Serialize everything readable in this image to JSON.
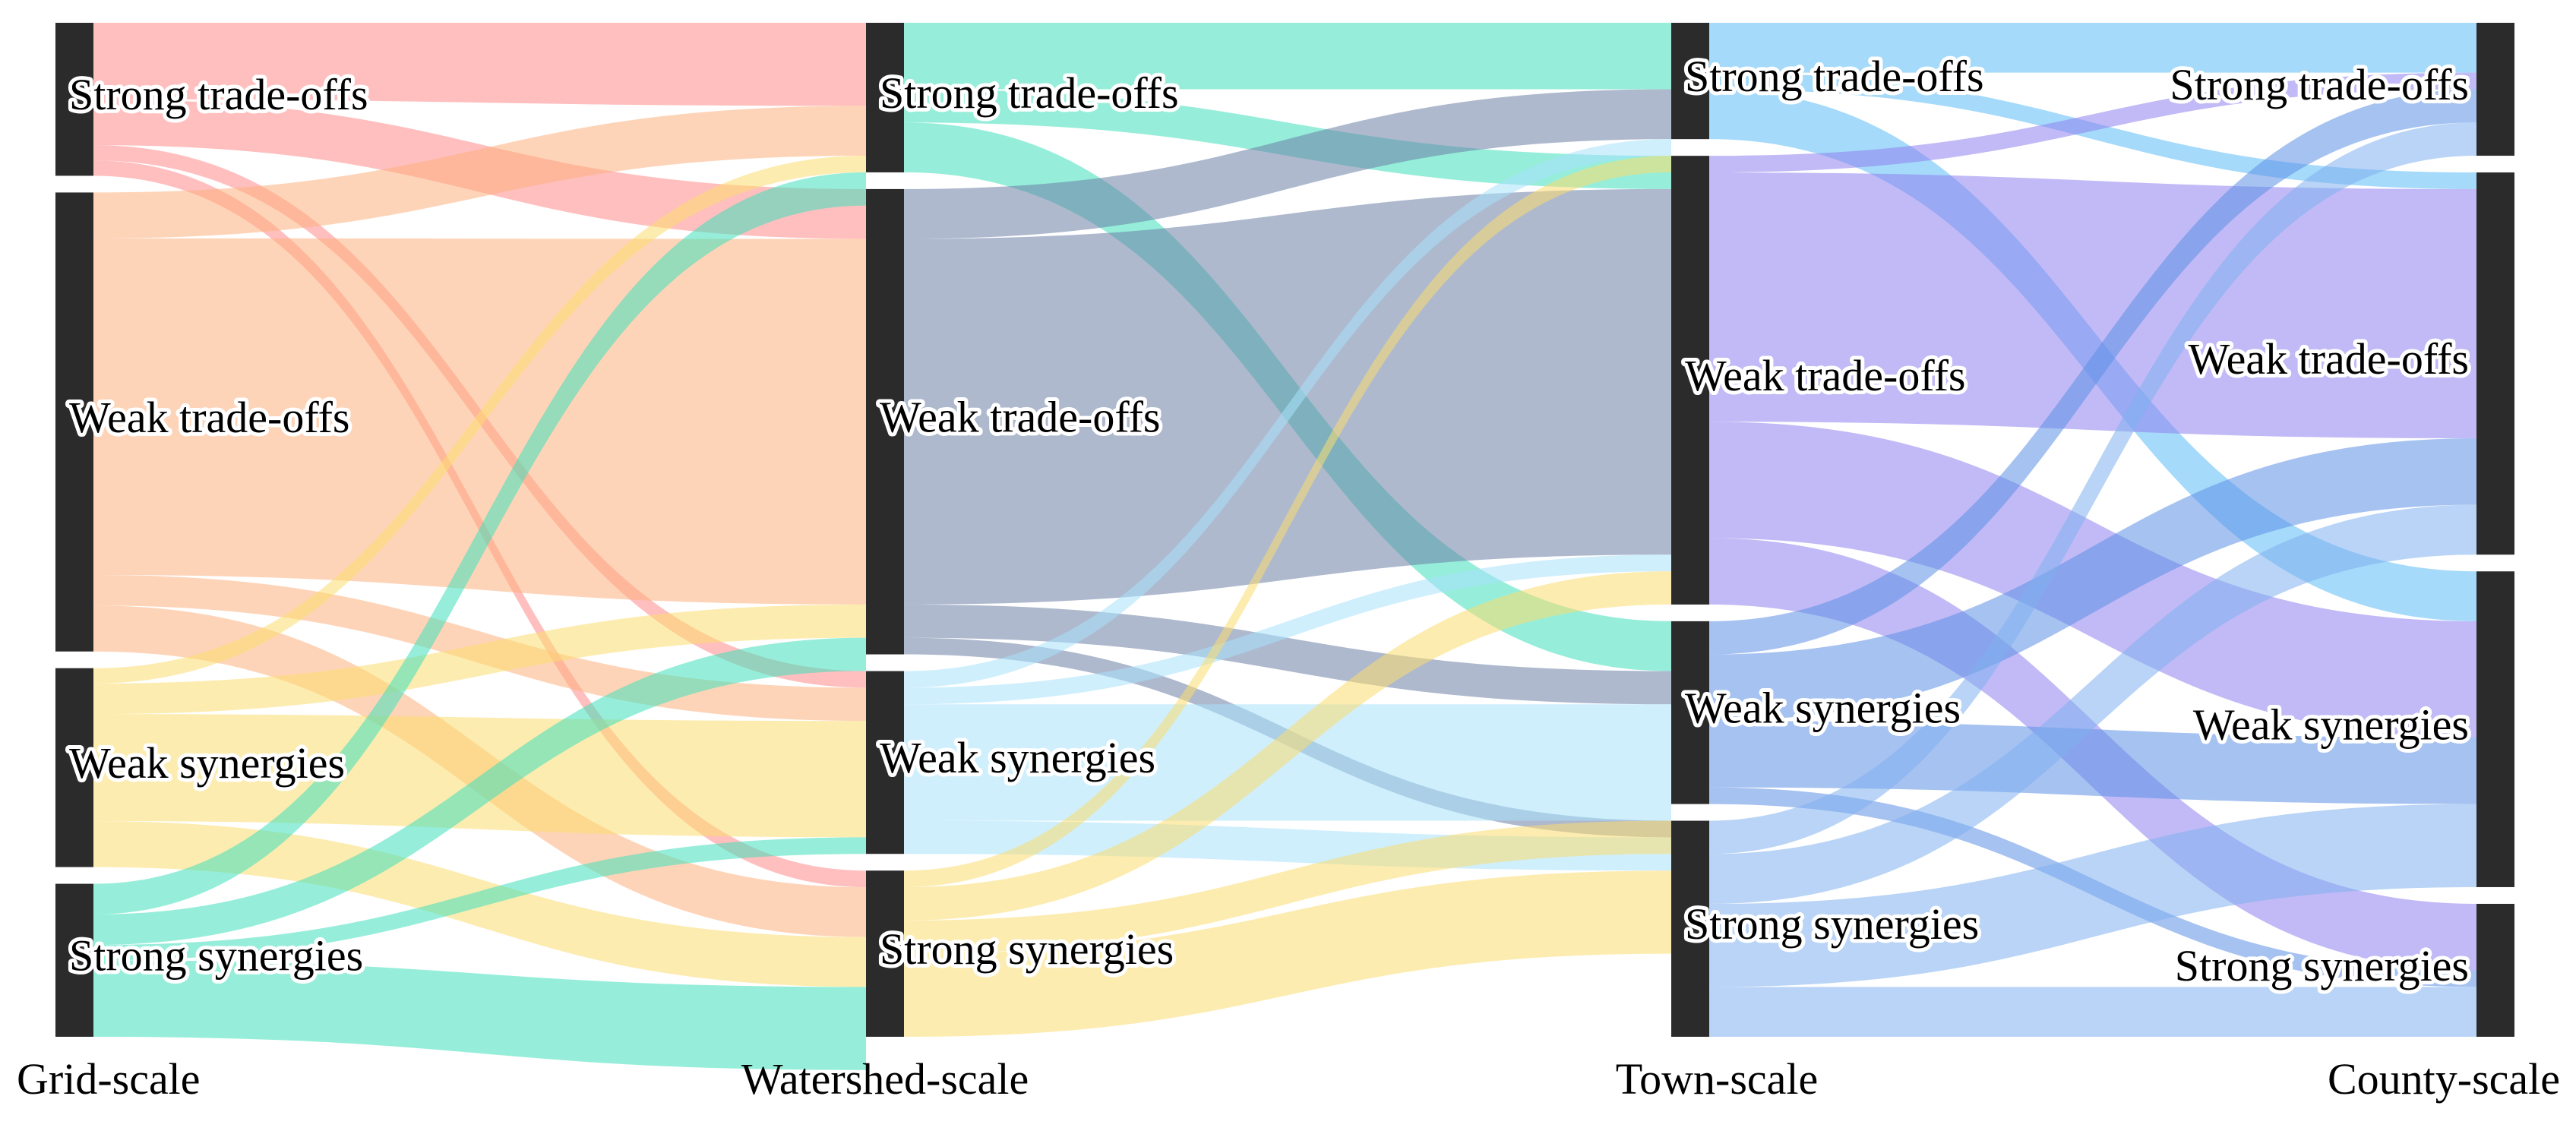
{
  "chart_data": {
    "type": "sankey",
    "columns": [
      {
        "id": "grid",
        "label": "Grid-scale"
      },
      {
        "id": "watershed",
        "label": "Watershed-scale"
      },
      {
        "id": "town",
        "label": "Town-scale"
      },
      {
        "id": "county",
        "label": "County-scale"
      }
    ],
    "categories": [
      {
        "id": "st",
        "label": "Strong trade-offs"
      },
      {
        "id": "wt",
        "label": "Weak trade-offs"
      },
      {
        "id": "ws",
        "label": "Weak synergies"
      },
      {
        "id": "ss",
        "label": "Strong synergies"
      }
    ],
    "stage_colors": [
      "#ff8a8a",
      "#fdb07e",
      "#fbdc70",
      "#3fe0bb"
    ],
    "flows": [
      {
        "source": "grid",
        "target": "watershed",
        "colors": {
          "st": "#ff8a8a",
          "wt": "#fdb07e",
          "ws": "#fbdc70",
          "ss": "#3fe0bb"
        },
        "values": [
          [
            5,
            3,
            1,
            1
          ],
          [
            3,
            22,
            2,
            3
          ],
          [
            1,
            2,
            7,
            3
          ],
          [
            2,
            2,
            1,
            5
          ]
        ]
      },
      {
        "source": "watershed",
        "target": "town",
        "colors": {
          "st": "#3fe0bb",
          "wt": "#6b7fa6",
          "ws": "#a8e2fb",
          "ss": "#fbdc70"
        },
        "values": [
          [
            4,
            2,
            3,
            0
          ],
          [
            3,
            22,
            2,
            1
          ],
          [
            1,
            1,
            7,
            2
          ],
          [
            1,
            2,
            2,
            5
          ]
        ]
      },
      {
        "source": "town",
        "target": "county",
        "colors": {
          "st": "#5bbcf5",
          "wt": "#8f82ee",
          "ws": "#5c8fe6",
          "ss": "#7fb0ee"
        },
        "values": [
          [
            3,
            1,
            3,
            0
          ],
          [
            1,
            15,
            7,
            4
          ],
          [
            2,
            4,
            4,
            1
          ],
          [
            2,
            3,
            5,
            3
          ]
        ]
      }
    ]
  }
}
